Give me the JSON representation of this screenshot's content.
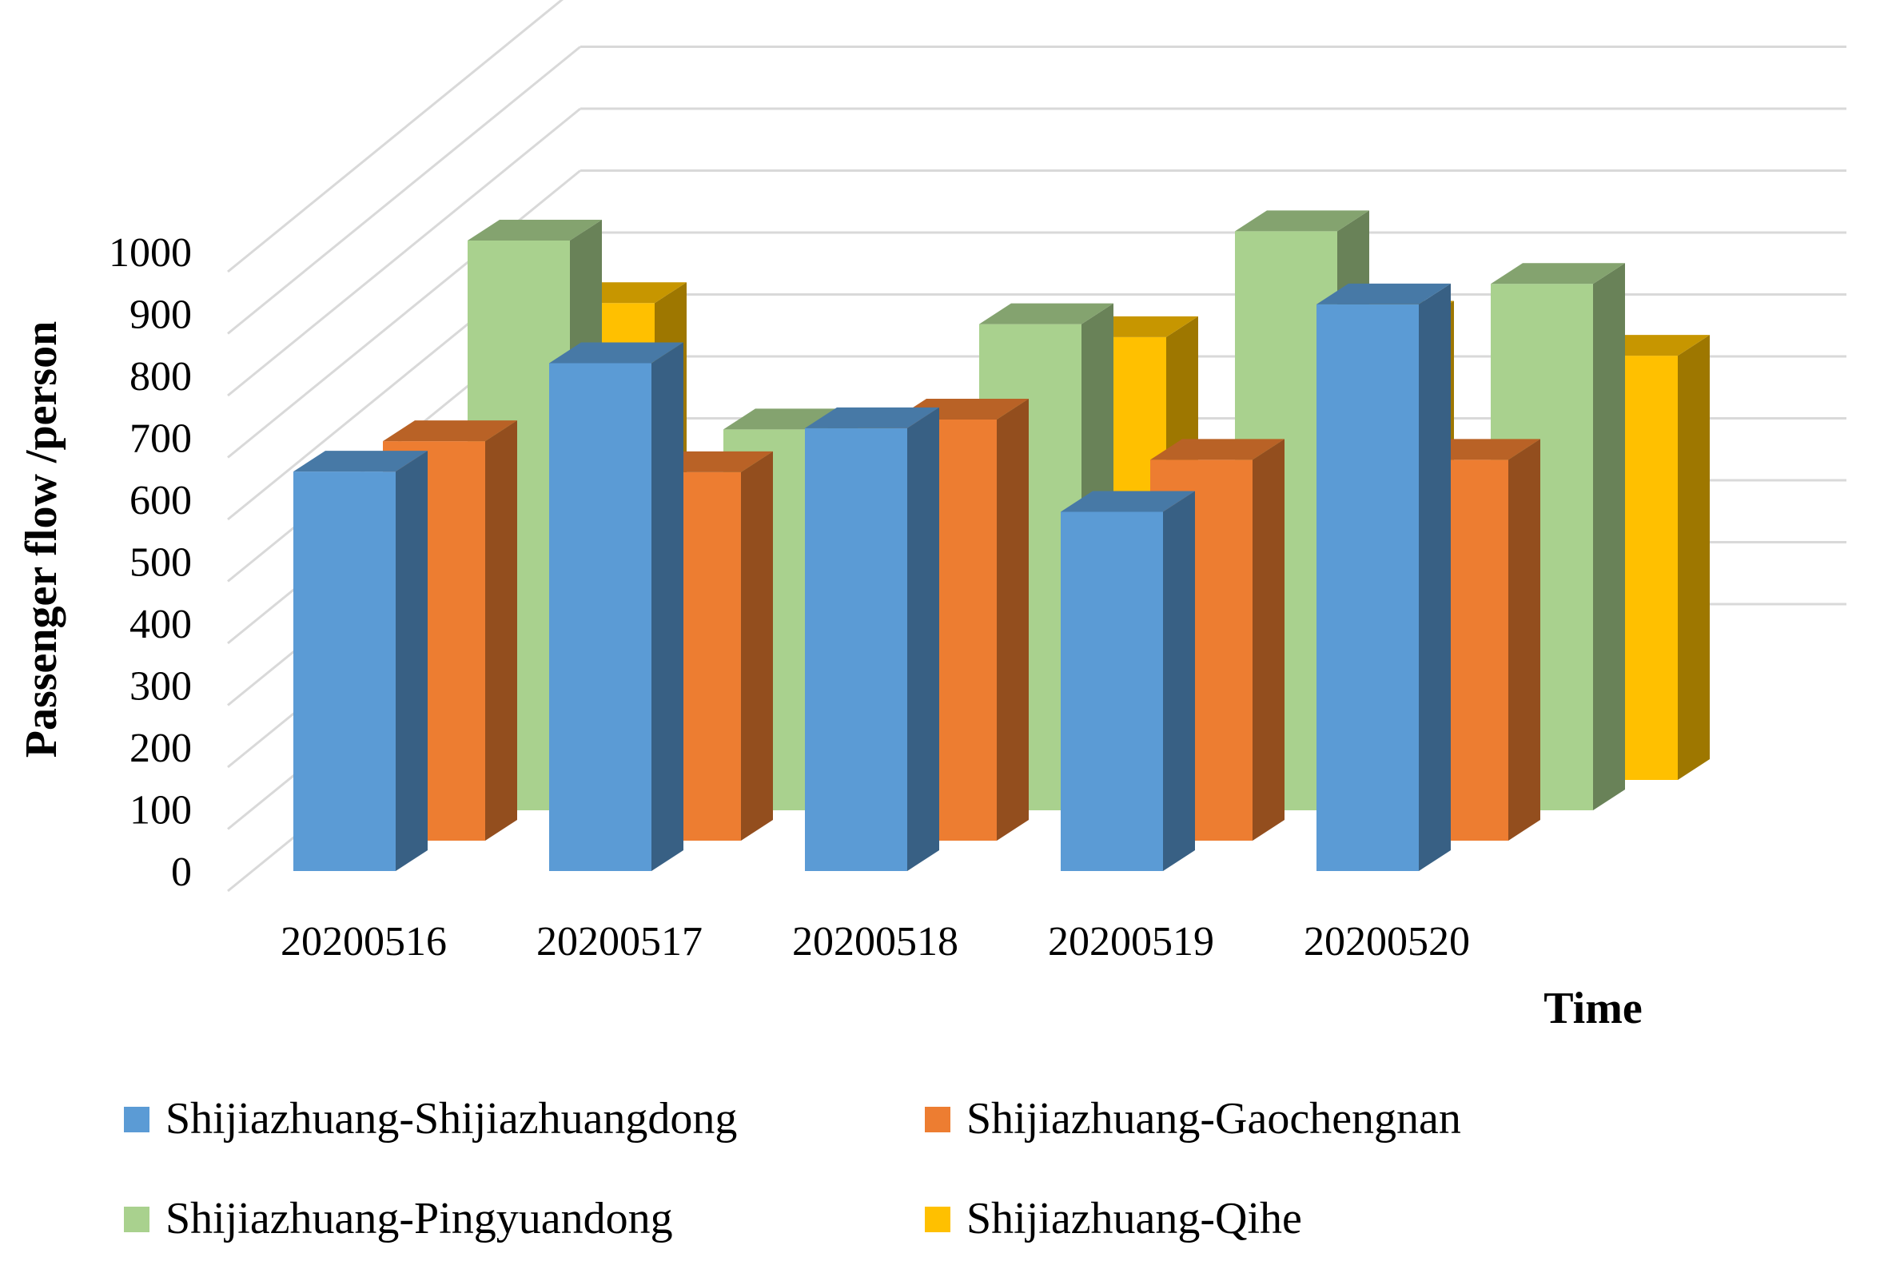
{
  "chart_data": {
    "type": "bar",
    "subtype": "3d-clustered-bar",
    "title": "",
    "xlabel": "Time",
    "ylabel": "Passenger flow /person",
    "ylim": [
      0,
      1000
    ],
    "yticks": [
      0,
      100,
      200,
      300,
      400,
      500,
      600,
      700,
      800,
      900,
      1000
    ],
    "grid": true,
    "legend_position": "bottom",
    "categories": [
      "20200516",
      "20200517",
      "20200518",
      "20200519",
      "20200520"
    ],
    "series": [
      {
        "name": "Shijiazhuang-Shijiazhuangdong",
        "color": "#5B9BD5",
        "values": [
          645,
          820,
          715,
          580,
          915
        ]
      },
      {
        "name": "Shijiazhuang-Gaochengnan",
        "color": "#ED7D31",
        "values": [
          645,
          595,
          680,
          615,
          615
        ]
      },
      {
        "name": "Shijiazhuang-Pingyuandong",
        "color": "#A9D18E",
        "values": [
          920,
          615,
          785,
          935,
          850
        ]
      },
      {
        "name": "Shijiazhuang-Qihe",
        "color": "#FFC000",
        "values": [
          770,
          565,
          715,
          740,
          685
        ]
      }
    ]
  }
}
